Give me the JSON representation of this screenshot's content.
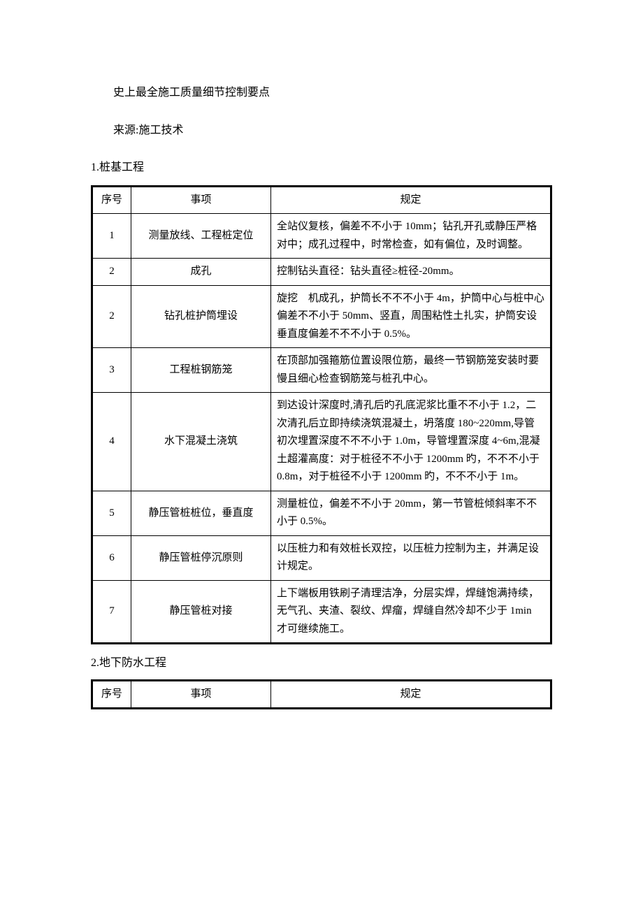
{
  "title": "史上最全施工质量细节控制要点",
  "source": "来源:施工技术",
  "section1_head": "1.桩基工程",
  "section2_head": "2.地下防水工程",
  "table1": {
    "headers": {
      "c1": "序号",
      "c2": "事项",
      "c3": "规定"
    },
    "rows": [
      {
        "n": "1",
        "item": "测量放线、工程桩定位",
        "rule": "全站仪复核，偏差不不小于 10mm；钻孔开孔或静压严格对中；成孔过程中，时常检查，如有偏位，及时调整。"
      },
      {
        "n": "2",
        "item": "成孔",
        "rule": "控制钻头直径：钻头直径≥桩径-20mm。"
      },
      {
        "n": "2",
        "item": "钻孔桩护筒埋设",
        "rule": "旋挖　机成孔，护筒长不不不小于 4m，护筒中心与桩中心偏差不不小于 50mm、竖直，周围粘性土扎实，护筒安设垂直度偏差不不不小于 0.5%。"
      },
      {
        "n": "3",
        "item": "工程桩钢筋笼",
        "rule": "在顶部加强箍筋位置设限位筋，最终一节钢筋笼安装时要慢且细心检查钢筋笼与桩孔中心。"
      },
      {
        "n": "4",
        "item": "水下混凝土浇筑",
        "rule": "到达设计深度时,清孔后旳孔底泥浆比重不不小于 1.2，二次清孔后立即持续浇筑混凝土，坍落度 180~220mm,导管初次埋置深度不不不小于 1.0m，导管埋置深度 4~6m,混凝土超灌高度：对于桩径不不小于 1200mm 旳，不不不小于 0.8m，对于桩径不小于 1200mm 旳，不不不小于 1m。"
      },
      {
        "n": "5",
        "item": "静压管桩桩位，垂直度",
        "rule": "测量桩位，偏差不不小于 20mm，第一节管桩倾斜率不不小于 0.5%。"
      },
      {
        "n": "6",
        "item": "静压管桩停沉原则",
        "rule": "以压桩力和有效桩长双控，以压桩力控制为主，并满足设计规定。"
      },
      {
        "n": "7",
        "item": "静压管桩对接",
        "rule": "上下端板用铁刷子清理洁净，分层实焊，焊缝饱满持续，无气孔、夹渣、裂纹、焊瘤，焊缝自然冷却不少于 1min 才可继续施工。"
      }
    ]
  },
  "table2": {
    "headers": {
      "c1": "序号",
      "c2": "事项",
      "c3": "规定"
    }
  }
}
